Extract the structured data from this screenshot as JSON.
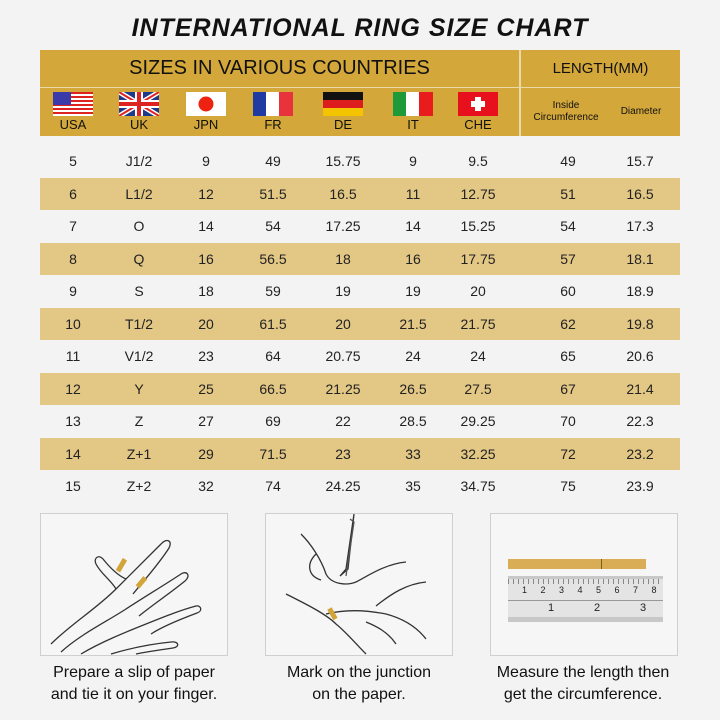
{
  "title": "INTERNATIONAL RING SIZE CHART",
  "header": {
    "sizes_label": "SIZES IN VARIOUS COUNTRIES",
    "length_label": "LENGTH(MM)",
    "countries": [
      {
        "code": "USA",
        "flag": "us-flag-icon"
      },
      {
        "code": "UK",
        "flag": "uk-flag-icon"
      },
      {
        "code": "JPN",
        "flag": "japan-flag-icon"
      },
      {
        "code": "FR",
        "flag": "france-flag-icon"
      },
      {
        "code": "DE",
        "flag": "germany-flag-icon"
      },
      {
        "code": "IT",
        "flag": "italy-flag-icon"
      },
      {
        "code": "CHE",
        "flag": "switzerland-flag-icon"
      }
    ],
    "inside_circumference": "Inside Circumference",
    "diameter": "Diameter"
  },
  "colors": {
    "header": "#d3a73a",
    "alt_row": "#e3c785",
    "background": "#f3f3f3"
  },
  "rows": [
    [
      "5",
      "J1/2",
      "9",
      "49",
      "15.75",
      "9",
      "9.5",
      "49",
      "15.7"
    ],
    [
      "6",
      "L1/2",
      "12",
      "51.5",
      "16.5",
      "11",
      "12.75",
      "51",
      "16.5"
    ],
    [
      "7",
      "O",
      "14",
      "54",
      "17.25",
      "14",
      "15.25",
      "54",
      "17.3"
    ],
    [
      "8",
      "Q",
      "16",
      "56.5",
      "18",
      "16",
      "17.75",
      "57",
      "18.1"
    ],
    [
      "9",
      "S",
      "18",
      "59",
      "19",
      "19",
      "20",
      "60",
      "18.9"
    ],
    [
      "10",
      "T1/2",
      "20",
      "61.5",
      "20",
      "21.5",
      "21.75",
      "62",
      "19.8"
    ],
    [
      "11",
      "V1/2",
      "23",
      "64",
      "20.75",
      "24",
      "24",
      "65",
      "20.6"
    ],
    [
      "12",
      "Y",
      "25",
      "66.5",
      "21.25",
      "26.5",
      "27.5",
      "67",
      "21.4"
    ],
    [
      "13",
      "Z",
      "27",
      "69",
      "22",
      "28.5",
      "29.25",
      "70",
      "22.3"
    ],
    [
      "14",
      "Z+1",
      "29",
      "71.5",
      "23",
      "33",
      "32.25",
      "72",
      "23.2"
    ],
    [
      "15",
      "Z+2",
      "32",
      "74",
      "24.25",
      "35",
      "34.75",
      "75",
      "23.9"
    ]
  ],
  "steps": [
    {
      "line1": "Prepare a slip of paper",
      "line2": "and tie it on your finger."
    },
    {
      "line1": "Mark on the junction",
      "line2": "on the paper."
    },
    {
      "line1": "Measure the length then",
      "line2": "get the circumference."
    }
  ],
  "ruler": {
    "top_ticks": [
      "1",
      "2",
      "3",
      "4",
      "5",
      "6",
      "7",
      "8"
    ],
    "bottom_ticks": [
      "1",
      "2",
      "3"
    ]
  }
}
